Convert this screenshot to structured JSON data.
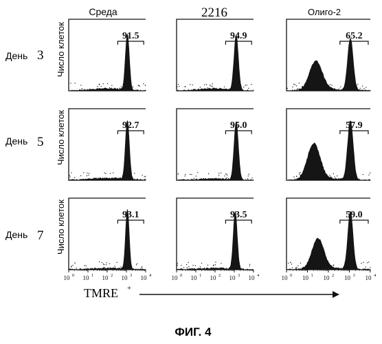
{
  "figure": {
    "caption": "ФИГ. 4",
    "x_axis_label": "TMRE",
    "x_axis_label_sup": "+",
    "y_axis_label": "Число клеток"
  },
  "columns": [
    "Среда",
    "2216",
    "Олиго-2"
  ],
  "rows": [
    {
      "label": "День",
      "number": "3"
    },
    {
      "label": "День",
      "number": "5"
    },
    {
      "label": "День",
      "number": "7"
    }
  ],
  "chart_data": {
    "type": "histogram-grid",
    "x_scale": "log",
    "x_ticks": [
      {
        "base": "10",
        "exp": "0"
      },
      {
        "base": "10",
        "exp": "1"
      },
      {
        "base": "10",
        "exp": "2"
      },
      {
        "base": "10",
        "exp": "3"
      },
      {
        "base": "10",
        "exp": "4"
      }
    ],
    "xlim": [
      1,
      10000
    ],
    "panels": [
      {
        "row": 0,
        "col": 0,
        "gate_percent": "91.5",
        "peaks": [
          {
            "center": 3.05,
            "height": 0.78,
            "width": 0.1
          }
        ],
        "bg": 0.03
      },
      {
        "row": 0,
        "col": 1,
        "gate_percent": "94.9",
        "peaks": [
          {
            "center": 3.1,
            "height": 0.76,
            "width": 0.11
          }
        ],
        "bg": 0.03
      },
      {
        "row": 0,
        "col": 2,
        "gate_percent": "65.2",
        "peaks": [
          {
            "center": 1.4,
            "height": 0.4,
            "width": 0.3
          },
          {
            "center": 3.05,
            "height": 0.72,
            "width": 0.13
          }
        ],
        "bg": 0.02
      },
      {
        "row": 1,
        "col": 0,
        "gate_percent": "92.7",
        "peaks": [
          {
            "center": 3.05,
            "height": 0.82,
            "width": 0.1
          }
        ],
        "bg": 0.03
      },
      {
        "row": 1,
        "col": 1,
        "gate_percent": "95.0",
        "peaks": [
          {
            "center": 3.1,
            "height": 0.8,
            "width": 0.11
          }
        ],
        "bg": 0.02
      },
      {
        "row": 1,
        "col": 2,
        "gate_percent": "57.9",
        "peaks": [
          {
            "center": 1.3,
            "height": 0.5,
            "width": 0.3
          },
          {
            "center": 3.05,
            "height": 0.82,
            "width": 0.13
          }
        ],
        "bg": 0.02
      },
      {
        "row": 2,
        "col": 0,
        "gate_percent": "93.1",
        "peaks": [
          {
            "center": 3.05,
            "height": 0.84,
            "width": 0.09
          }
        ],
        "bg": 0.02
      },
      {
        "row": 2,
        "col": 1,
        "gate_percent": "93.5",
        "peaks": [
          {
            "center": 3.05,
            "height": 0.8,
            "width": 0.1
          }
        ],
        "bg": 0.02
      },
      {
        "row": 2,
        "col": 2,
        "gate_percent": "59.0",
        "peaks": [
          {
            "center": 1.5,
            "height": 0.42,
            "width": 0.28
          },
          {
            "center": 3.05,
            "height": 0.8,
            "width": 0.12
          }
        ],
        "bg": 0.02
      }
    ],
    "gate_range": [
      2.55,
      3.9
    ],
    "colors": {
      "ink": "#111111",
      "fill": "#151515"
    }
  }
}
